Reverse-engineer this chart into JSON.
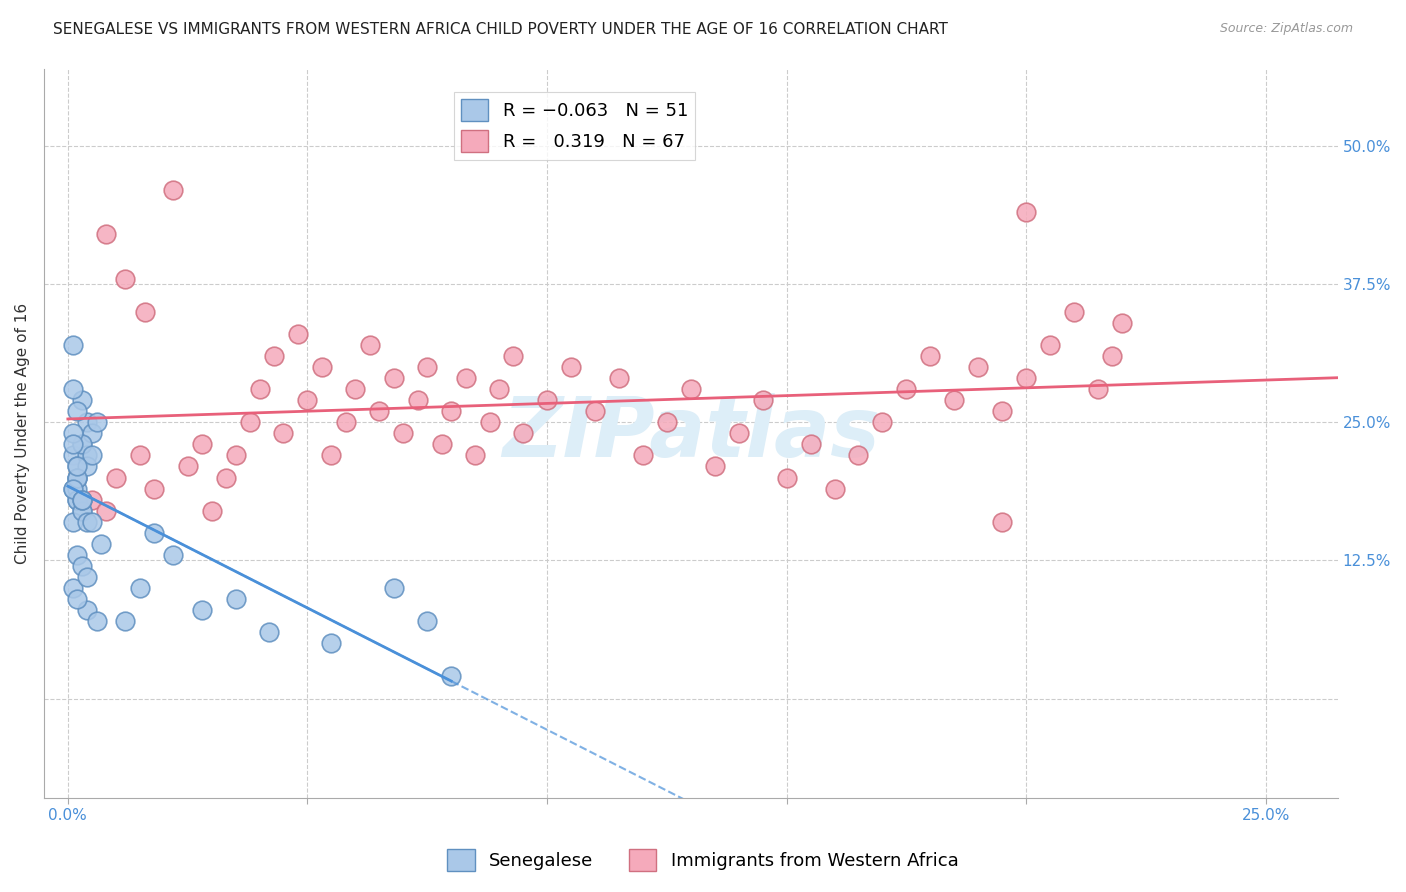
{
  "title": "SENEGALESE VS IMMIGRANTS FROM WESTERN AFRICA CHILD POVERTY UNDER THE AGE OF 16 CORRELATION CHART",
  "source": "Source: ZipAtlas.com",
  "ylabel": "Child Poverty Under the Age of 16",
  "y_ticks": [
    0.0,
    0.125,
    0.25,
    0.375,
    0.5
  ],
  "y_tick_labels": [
    "",
    "12.5%",
    "25.0%",
    "37.5%",
    "50.0%"
  ],
  "x_ticks": [
    0.0,
    0.05,
    0.1,
    0.15,
    0.2,
    0.25
  ],
  "x_tick_labels": [
    "0.0%",
    "",
    "",
    "",
    "",
    "25.0%"
  ],
  "xlim": [
    -0.005,
    0.265
  ],
  "ylim": [
    -0.09,
    0.57
  ],
  "senegalese_color": "#aac8e8",
  "immigrants_color": "#f5aabb",
  "trend_senegalese_color": "#4a90d9",
  "trend_immigrants_color": "#e8607a",
  "background_color": "#ffffff",
  "grid_color": "#cccccc",
  "watermark_text": "ZIPatlas",
  "watermark_color": "#ddeef8",
  "R_senegalese": -0.063,
  "N_senegalese": 51,
  "R_immigrants": 0.319,
  "N_immigrants": 67,
  "title_fontsize": 11,
  "axis_label_fontsize": 11,
  "tick_fontsize": 11,
  "legend_fontsize": 13,
  "right_tick_color": "#4a90d9",
  "bottom_tick_color": "#4a90d9",
  "senegalese_x": [
    0.002,
    0.001,
    0.003,
    0.001,
    0.002,
    0.004,
    0.003,
    0.001,
    0.002,
    0.005,
    0.003,
    0.002,
    0.001,
    0.004,
    0.002,
    0.003,
    0.001,
    0.002,
    0.006,
    0.004,
    0.002,
    0.001,
    0.003,
    0.005,
    0.002,
    0.001,
    0.004,
    0.003,
    0.002,
    0.001,
    0.007,
    0.005,
    0.003,
    0.002,
    0.001,
    0.004,
    0.003,
    0.002,
    0.006,
    0.004,
    0.018,
    0.022,
    0.015,
    0.028,
    0.012,
    0.035,
    0.042,
    0.055,
    0.068,
    0.075,
    0.08
  ],
  "senegalese_y": [
    0.18,
    0.32,
    0.27,
    0.22,
    0.2,
    0.25,
    0.23,
    0.19,
    0.21,
    0.24,
    0.17,
    0.26,
    0.28,
    0.22,
    0.19,
    0.23,
    0.16,
    0.2,
    0.25,
    0.21,
    0.18,
    0.24,
    0.17,
    0.22,
    0.2,
    0.19,
    0.16,
    0.18,
    0.21,
    0.23,
    0.14,
    0.16,
    0.18,
    0.13,
    0.1,
    0.08,
    0.12,
    0.09,
    0.07,
    0.11,
    0.15,
    0.13,
    0.1,
    0.08,
    0.07,
    0.09,
    0.06,
    0.05,
    0.1,
    0.07,
    0.02
  ],
  "immigrants_x": [
    0.005,
    0.01,
    0.015,
    0.018,
    0.022,
    0.025,
    0.028,
    0.03,
    0.033,
    0.035,
    0.038,
    0.04,
    0.043,
    0.045,
    0.048,
    0.05,
    0.053,
    0.055,
    0.058,
    0.06,
    0.063,
    0.065,
    0.068,
    0.07,
    0.073,
    0.075,
    0.078,
    0.08,
    0.083,
    0.085,
    0.088,
    0.09,
    0.093,
    0.095,
    0.1,
    0.105,
    0.11,
    0.115,
    0.12,
    0.125,
    0.13,
    0.135,
    0.14,
    0.145,
    0.15,
    0.155,
    0.16,
    0.165,
    0.17,
    0.175,
    0.18,
    0.185,
    0.19,
    0.195,
    0.2,
    0.205,
    0.21,
    0.215,
    0.218,
    0.22,
    0.008,
    0.012,
    0.016,
    0.003,
    0.2,
    0.195,
    0.008
  ],
  "immigrants_y": [
    0.18,
    0.2,
    0.22,
    0.19,
    0.46,
    0.21,
    0.23,
    0.17,
    0.2,
    0.22,
    0.25,
    0.28,
    0.31,
    0.24,
    0.33,
    0.27,
    0.3,
    0.22,
    0.25,
    0.28,
    0.32,
    0.26,
    0.29,
    0.24,
    0.27,
    0.3,
    0.23,
    0.26,
    0.29,
    0.22,
    0.25,
    0.28,
    0.31,
    0.24,
    0.27,
    0.3,
    0.26,
    0.29,
    0.22,
    0.25,
    0.28,
    0.21,
    0.24,
    0.27,
    0.2,
    0.23,
    0.19,
    0.22,
    0.25,
    0.28,
    0.31,
    0.27,
    0.3,
    0.26,
    0.29,
    0.32,
    0.35,
    0.28,
    0.31,
    0.34,
    0.42,
    0.38,
    0.35,
    0.18,
    0.44,
    0.16,
    0.17
  ]
}
